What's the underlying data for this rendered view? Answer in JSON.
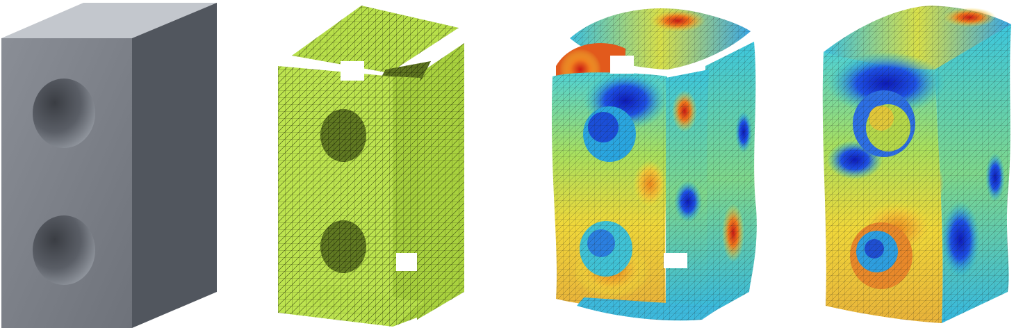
{
  "figure": {
    "panels": [
      {
        "id": "cad",
        "render": "solid-grey"
      },
      {
        "id": "mesh",
        "render": "wireframe-green"
      },
      {
        "id": "exploded-field",
        "render": "jet-colormap-exploded"
      },
      {
        "id": "assembled-field",
        "render": "jet-colormap-assembled"
      }
    ]
  },
  "colors": {
    "solid_front": "#7b7f87",
    "solid_side": "#555a62",
    "solid_top": "#b7bcc3",
    "mesh_fill": "#b8e04a",
    "mesh_line": "#3d4a14",
    "mesh_shade": "#7c9a2e",
    "jet_low": "#1a2bd6",
    "jet_mid": "#f0e43a",
    "jet_high": "#d92a1c",
    "jet_cyan": "#27c6d8"
  }
}
